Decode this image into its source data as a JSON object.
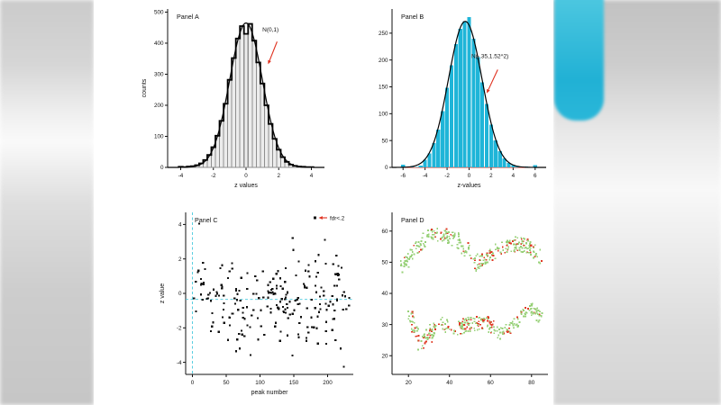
{
  "colors": {
    "cyan_bar": "#1fb5d8",
    "red_accent": "#e0301e",
    "green_point": "#97d077",
    "red_point": "#e03a24",
    "gray_bar_fill": "#ececec",
    "gray_bar_stroke": "#8f8f8f",
    "dash_cyan": "#49c9dd",
    "axis": "#111111"
  },
  "chart_data": [
    {
      "id": "panel-a",
      "type": "histogram",
      "panel_label": "Panel A",
      "xlabel": "z values",
      "ylabel": "counts",
      "xlim": [
        -4.8,
        4.8
      ],
      "ylim": [
        0,
        510
      ],
      "xticks": [
        -4,
        -2,
        0,
        2,
        4
      ],
      "yticks": [
        0,
        100,
        200,
        300,
        400,
        500
      ],
      "bin_centers": [
        -4,
        -3.75,
        -3.5,
        -3.25,
        -3,
        -2.75,
        -2.5,
        -2.25,
        -2,
        -1.75,
        -1.5,
        -1.25,
        -1,
        -0.75,
        -0.5,
        -0.25,
        0,
        0.25,
        0.5,
        0.75,
        1,
        1.25,
        1.5,
        1.75,
        2,
        2.25,
        2.5,
        2.75,
        3,
        3.25,
        3.5,
        3.75,
        4
      ],
      "bin_counts": [
        2,
        1,
        3,
        4,
        7,
        13,
        24,
        40,
        65,
        102,
        150,
        205,
        282,
        352,
        415,
        455,
        430,
        462,
        408,
        338,
        270,
        200,
        140,
        92,
        57,
        33,
        18,
        9,
        5,
        3,
        2,
        1,
        1
      ],
      "bar_fill": "#ececec",
      "bar_stroke": "#8f8f8f",
      "bar_width_factor": 0.9,
      "outline": true,
      "outline_color": "#000000",
      "curve": {
        "amplitude": 465,
        "mean": 0,
        "sd": 1,
        "color": "#000000"
      },
      "baseline_color": "#e0301e",
      "annotation": {
        "text": "N(0,1)",
        "text_at": [
          1.0,
          438
        ],
        "tail": [
          1.9,
          405
        ],
        "tip": [
          1.35,
          332
        ],
        "color": "#e0301e"
      }
    },
    {
      "id": "panel-b",
      "type": "histogram",
      "panel_label": "Panel B",
      "xlabel": "z-values",
      "ylabel": "",
      "xlim": [
        -7,
        7
      ],
      "ylim": [
        0,
        295
      ],
      "xticks": [
        -6,
        -4,
        -2,
        0,
        2,
        4,
        6
      ],
      "yticks": [
        0,
        50,
        100,
        150,
        200,
        250
      ],
      "bin_centers": [
        -6,
        -5.6,
        -5.2,
        -4.8,
        -4.4,
        -4,
        -3.6,
        -3.2,
        -2.8,
        -2.4,
        -2,
        -1.6,
        -1.2,
        -0.8,
        -0.4,
        0,
        0.4,
        0.8,
        1.2,
        1.6,
        2,
        2.4,
        2.8,
        3.2,
        3.6,
        4,
        4.4,
        4.8,
        5.2,
        5.6,
        6
      ],
      "bin_counts": [
        5,
        1,
        2,
        1,
        3,
        14,
        26,
        45,
        70,
        105,
        148,
        190,
        230,
        258,
        272,
        280,
        240,
        205,
        158,
        118,
        80,
        50,
        30,
        17,
        8,
        5,
        2,
        1,
        2,
        0,
        4
      ],
      "bar_fill": "#1fb5d8",
      "bar_stroke": "none",
      "bar_width_factor": 0.85,
      "outline": false,
      "curve": {
        "amplitude": 272,
        "mean": -0.35,
        "sd": 1.52,
        "color": "#000000"
      },
      "baseline_color": "#e0301e",
      "annotation": {
        "text": "N(-.35,1.52^2)",
        "text_at": [
          0.2,
          204
        ],
        "tail": [
          2.6,
          182
        ],
        "tip": [
          1.6,
          138
        ],
        "color": "#e0301e"
      }
    },
    {
      "id": "panel-c",
      "type": "scatter",
      "panel_label": "Panel C",
      "xlabel": "peak number",
      "ylabel": "z value",
      "xlim": [
        -10,
        238
      ],
      "ylim": [
        -4.7,
        4.7
      ],
      "xticks": [
        0,
        50,
        100,
        150,
        200
      ],
      "yticks": [
        -4,
        -2,
        0,
        2,
        4
      ],
      "generator": {
        "seed": 17,
        "n": 228,
        "x_min": 1,
        "x_max": 232,
        "y_mean": -0.32,
        "y_sd": 1.25
      },
      "outliers": [
        [
          10,
          4.05
        ],
        [
          224,
          -4.25
        ],
        [
          148,
          -3.6
        ],
        [
          70,
          -3.2
        ],
        [
          196,
          3.1
        ]
      ],
      "point_color": "#111111",
      "point_size": 2.2,
      "vline": {
        "x": 0,
        "color": "#49c9dd"
      },
      "hline": {
        "y": -0.35,
        "color": "#49c9dd"
      },
      "legend": {
        "label": "fdr<.2",
        "marker_color": "#111111",
        "arrow_color": "#e0301e"
      }
    },
    {
      "id": "panel-d",
      "type": "cluster-scatter",
      "panel_label": "Panel D",
      "xlabel": "",
      "ylabel": "",
      "xlim": [
        12,
        88
      ],
      "ylim": [
        14,
        66
      ],
      "xticks": [
        20,
        40,
        60,
        80
      ],
      "yticks": [
        20,
        30,
        40,
        50,
        60
      ],
      "point_size": 1.8,
      "green": "#97d077",
      "red": "#e03a24",
      "seed": 7,
      "clusters": [
        {
          "path": [
            [
              17,
              48
            ],
            [
              21,
              53
            ],
            [
              26,
              56
            ],
            [
              32,
              59
            ],
            [
              38,
              59
            ],
            [
              44,
              57
            ],
            [
              49,
              53
            ]
          ],
          "spread": 2.2,
          "n": 150,
          "red_p": 0.17
        },
        {
          "path": [
            [
              52,
              49
            ],
            [
              56,
              51
            ],
            [
              61,
              53
            ],
            [
              67,
              55
            ],
            [
              73,
              56
            ],
            [
              79,
              55
            ],
            [
              84,
              51
            ]
          ],
          "spread": 2.3,
          "n": 160,
          "red_p": 0.3
        },
        {
          "path": [
            [
              20,
              34
            ],
            [
              23,
              29
            ],
            [
              26,
              24
            ],
            [
              30,
              26
            ],
            [
              33,
              30
            ]
          ],
          "spread": 2.2,
          "n": 85,
          "red_p": 0.38
        },
        {
          "path": [
            [
              36,
              30
            ],
            [
              43,
              29
            ],
            [
              50,
              30
            ],
            [
              57,
              31
            ],
            [
              62,
              29
            ]
          ],
          "spread": 2.4,
          "n": 125,
          "red_p": 0.34
        },
        {
          "path": [
            [
              64,
              27
            ],
            [
              70,
              29
            ],
            [
              75,
              32
            ],
            [
              80,
              36
            ],
            [
              84,
              32
            ]
          ],
          "spread": 2.2,
          "n": 90,
          "red_p": 0.2
        }
      ]
    }
  ]
}
